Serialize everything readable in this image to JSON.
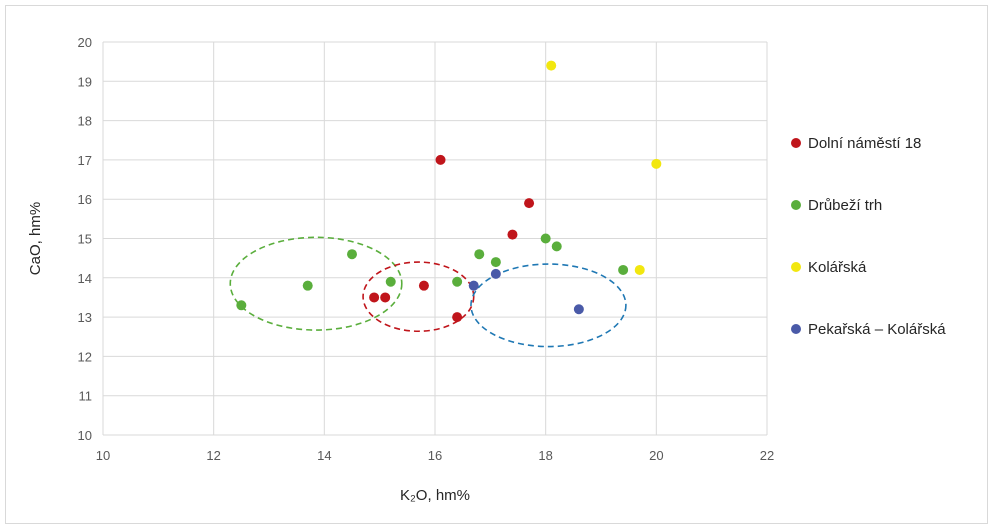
{
  "chart_data": {
    "type": "scatter",
    "xlabel": "K₂O, hm%",
    "ylabel": "CaO, hm%",
    "xlim": [
      10,
      22
    ],
    "ylim": [
      10,
      20
    ],
    "x_ticks": [
      10,
      12,
      14,
      16,
      18,
      20,
      22
    ],
    "y_ticks": [
      10,
      11,
      12,
      13,
      14,
      15,
      16,
      17,
      18,
      19,
      20
    ],
    "grid": true,
    "legend_position": "right",
    "series": [
      {
        "name": "Dolní náměstí 18",
        "color": "#c0151b",
        "points": [
          {
            "x": 14.9,
            "y": 13.5
          },
          {
            "x": 15.1,
            "y": 13.5
          },
          {
            "x": 15.8,
            "y": 13.8
          },
          {
            "x": 16.1,
            "y": 17.0
          },
          {
            "x": 16.4,
            "y": 13.0
          },
          {
            "x": 17.4,
            "y": 15.1
          },
          {
            "x": 17.7,
            "y": 15.9
          }
        ]
      },
      {
        "name": "Drůbeží trh",
        "color": "#5aae3c",
        "points": [
          {
            "x": 12.5,
            "y": 13.3
          },
          {
            "x": 13.7,
            "y": 13.8
          },
          {
            "x": 14.5,
            "y": 14.6
          },
          {
            "x": 15.2,
            "y": 13.9
          },
          {
            "x": 16.4,
            "y": 13.9
          },
          {
            "x": 16.8,
            "y": 14.6
          },
          {
            "x": 17.1,
            "y": 14.4
          },
          {
            "x": 18.0,
            "y": 15.0
          },
          {
            "x": 18.2,
            "y": 14.8
          },
          {
            "x": 19.4,
            "y": 14.2
          }
        ]
      },
      {
        "name": "Kolářská",
        "color": "#f2e70f",
        "points": [
          {
            "x": 18.1,
            "y": 19.4
          },
          {
            "x": 19.7,
            "y": 14.2
          },
          {
            "x": 20.0,
            "y": 16.9
          }
        ]
      },
      {
        "name": "Pekařská – Kolářská",
        "color": "#4a5aa8",
        "points": [
          {
            "x": 16.7,
            "y": 13.8
          },
          {
            "x": 17.1,
            "y": 14.1
          },
          {
            "x": 18.6,
            "y": 13.2
          }
        ]
      }
    ],
    "ellipses": [
      {
        "color": "#5aae3c",
        "cx": 13.85,
        "cy": 13.85,
        "rx": 1.55,
        "ry": 1.18
      },
      {
        "color": "#c0151b",
        "cx": 15.7,
        "cy": 13.52,
        "rx": 1.0,
        "ry": 0.88
      },
      {
        "color": "#1f78b4",
        "cx": 18.05,
        "cy": 13.3,
        "rx": 1.4,
        "ry": 1.05
      }
    ]
  }
}
